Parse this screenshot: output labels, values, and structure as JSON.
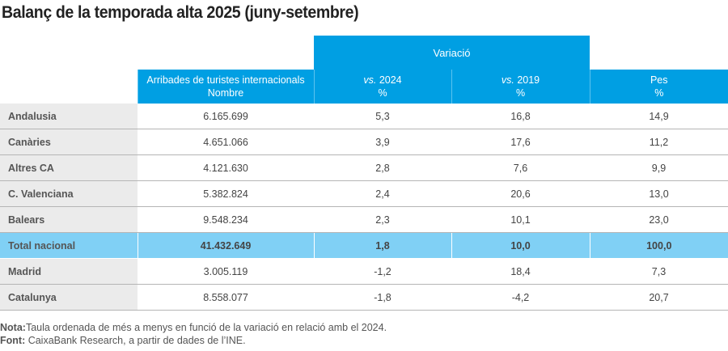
{
  "title": "Balanç de la temporada alta 2025 (juny-setembre)",
  "header": {
    "group_label": "Variació",
    "columns": [
      {
        "prefix": "",
        "label": "Arribades de turistes internacionals",
        "unit": "Nombre"
      },
      {
        "prefix": "vs.",
        "label": " 2024",
        "unit": "%"
      },
      {
        "prefix": "vs.",
        "label": " 2019",
        "unit": "%"
      },
      {
        "prefix": "",
        "label": "Pes",
        "unit": "%"
      }
    ]
  },
  "rows": [
    {
      "region": "Andalusia",
      "arrivals": "6.165.699",
      "vs2024": "5,3",
      "vs2019": "16,8",
      "pes": "14,9"
    },
    {
      "region": "Canàries",
      "arrivals": "4.651.066",
      "vs2024": "3,9",
      "vs2019": "17,6",
      "pes": "11,2"
    },
    {
      "region": "Altres CA",
      "arrivals": "4.121.630",
      "vs2024": "2,8",
      "vs2019": "7,6",
      "pes": "9,9"
    },
    {
      "region": "C. Valenciana",
      "arrivals": "5.382.824",
      "vs2024": "2,4",
      "vs2019": "20,6",
      "pes": "13,0"
    },
    {
      "region": "Balears",
      "arrivals": "9.548.234",
      "vs2024": "2,3",
      "vs2019": "10,1",
      "pes": "23,0"
    },
    {
      "region": "Total nacional",
      "arrivals": "41.432.649",
      "vs2024": "1,8",
      "vs2019": "10,0",
      "pes": "100,0",
      "total": true
    },
    {
      "region": "Madrid",
      "arrivals": "3.005.119",
      "vs2024": "-1,2",
      "vs2019": "18,4",
      "pes": "7,3"
    },
    {
      "region": "Catalunya",
      "arrivals": "8.558.077",
      "vs2024": "-1,8",
      "vs2019": "-4,2",
      "pes": "20,7"
    }
  ],
  "notes": {
    "nota_label": "Nota:",
    "nota_text": "Taula ordenada de més a menys en funció de la variació en relació amb el  2024.",
    "font_label": "Font:",
    "font_text": " CaixaBank Research, a partir de dades de l’INE."
  },
  "colors": {
    "header_blue": "#009fe3",
    "total_row": "#80d0f5",
    "label_column": "#ebebeb"
  }
}
